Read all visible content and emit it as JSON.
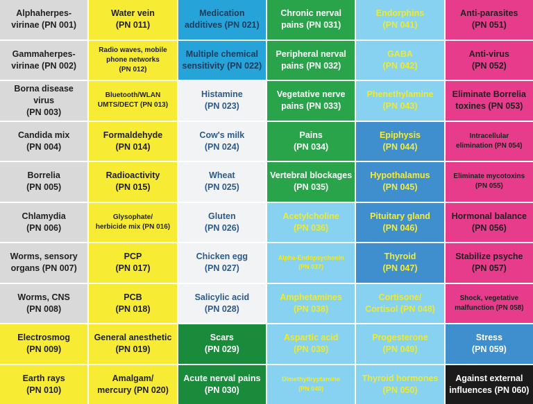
{
  "cells": [
    {
      "l1": "Alphaherpes-",
      "l2": "virinae (PN 001)",
      "theme": "gray",
      "size": ""
    },
    {
      "l1": "Water vein",
      "l2": "(PN 011)",
      "theme": "yellow",
      "size": ""
    },
    {
      "l1": "Medication",
      "l2": "additives (PN 021)",
      "theme": "blue",
      "size": ""
    },
    {
      "l1": "Chronic nerval",
      "l2": "pains (PN 031)",
      "theme": "green",
      "size": ""
    },
    {
      "l1": "Endorphins",
      "l2": "(PN 041)",
      "theme": "lblue",
      "size": ""
    },
    {
      "l1": "Anti-parasites",
      "l2": "(PN 051)",
      "theme": "pink",
      "size": ""
    },
    {
      "l1": "Gammaherpes-",
      "l2": "virinae (PN 002)",
      "theme": "gray",
      "size": ""
    },
    {
      "l1": "Radio waves, mobile\nphone networks",
      "l2": "(PN 012)",
      "theme": "yellow",
      "size": "sm"
    },
    {
      "l1": "Multiple chemical",
      "l2": "sensitivity (PN 022)",
      "theme": "blue",
      "size": ""
    },
    {
      "l1": "Peripheral nerval",
      "l2": "pains (PN 032)",
      "theme": "green",
      "size": ""
    },
    {
      "l1": "GABA",
      "l2": "(PN 042)",
      "theme": "lblue",
      "size": ""
    },
    {
      "l1": "Anti-virus",
      "l2": "(PN 052)",
      "theme": "pink",
      "size": ""
    },
    {
      "l1": "Borna disease virus",
      "l2": "(PN 003)",
      "theme": "gray",
      "size": ""
    },
    {
      "l1": "Bluetooth/WLAN",
      "l2": "UMTS/DECT (PN 013)",
      "theme": "yellow",
      "size": "sm"
    },
    {
      "l1": "Histamine",
      "l2": "(PN 023)",
      "theme": "white",
      "size": ""
    },
    {
      "l1": "Vegetative nerve",
      "l2": "pains (PN 033)",
      "theme": "green",
      "size": ""
    },
    {
      "l1": "Phenethylamine",
      "l2": "(PN 043)",
      "theme": "lblue",
      "size": ""
    },
    {
      "l1": "Eliminate Borrelia",
      "l2": "toxines (PN 053)",
      "theme": "pink",
      "size": ""
    },
    {
      "l1": "Candida mix",
      "l2": "(PN 004)",
      "theme": "gray",
      "size": ""
    },
    {
      "l1": "Formaldehyde",
      "l2": "(PN 014)",
      "theme": "yellow",
      "size": ""
    },
    {
      "l1": "Cow's milk",
      "l2": "(PN 024)",
      "theme": "white",
      "size": ""
    },
    {
      "l1": "Pains",
      "l2": "(PN 034)",
      "theme": "green",
      "size": ""
    },
    {
      "l1": "Epiphysis",
      "l2": "(PN 044)",
      "theme": "mblue",
      "size": ""
    },
    {
      "l1": "Intracellular",
      "l2": "elimination (PN 054)",
      "theme": "pink",
      "size": "sm"
    },
    {
      "l1": "Borrelia",
      "l2": "(PN 005)",
      "theme": "gray",
      "size": ""
    },
    {
      "l1": "Radioactivity",
      "l2": "(PN 015)",
      "theme": "yellow",
      "size": ""
    },
    {
      "l1": "Wheat",
      "l2": "(PN 025)",
      "theme": "white",
      "size": ""
    },
    {
      "l1": "Vertebral blockages",
      "l2": "(PN 035)",
      "theme": "green",
      "size": ""
    },
    {
      "l1": "Hypothalamus",
      "l2": "(PN 045)",
      "theme": "mblue",
      "size": ""
    },
    {
      "l1": "Eliminate mycotoxins",
      "l2": "(PN 055)",
      "theme": "pink",
      "size": "sm"
    },
    {
      "l1": "Chlamydia",
      "l2": "(PN 006)",
      "theme": "gray",
      "size": ""
    },
    {
      "l1": "Glysophate/",
      "l2": "herbicide mix (PN 016)",
      "theme": "yellow",
      "size": "sm"
    },
    {
      "l1": "Gluten",
      "l2": "(PN 026)",
      "theme": "white",
      "size": ""
    },
    {
      "l1": "Acetylcholine",
      "l2": "(PN 036)",
      "theme": "lblue",
      "size": ""
    },
    {
      "l1": "Pituitary gland",
      "l2": "(PN 046)",
      "theme": "mblue",
      "size": ""
    },
    {
      "l1": "Hormonal balance",
      "l2": "(PN 056)",
      "theme": "pink",
      "size": ""
    },
    {
      "l1": "Worms, sensory",
      "l2": "organs (PN 007)",
      "theme": "gray",
      "size": ""
    },
    {
      "l1": "PCP",
      "l2": "(PN 017)",
      "theme": "yellow",
      "size": ""
    },
    {
      "l1": "Chicken egg",
      "l2": "(PN 027)",
      "theme": "white",
      "size": ""
    },
    {
      "l1": "Alpha-Endopsychosin",
      "l2": "(PN 037)",
      "theme": "lblue",
      "size": "xs"
    },
    {
      "l1": "Thyroid",
      "l2": "(PN 047)",
      "theme": "mblue",
      "size": ""
    },
    {
      "l1": "Stabilize psyche",
      "l2": "(PN 057)",
      "theme": "pink",
      "size": ""
    },
    {
      "l1": "Worms, CNS",
      "l2": "(PN 008)",
      "theme": "gray",
      "size": ""
    },
    {
      "l1": "PCB",
      "l2": "(PN 018)",
      "theme": "yellow",
      "size": ""
    },
    {
      "l1": "Salicylic acid",
      "l2": "(PN 028)",
      "theme": "white",
      "size": ""
    },
    {
      "l1": "Amphetamines",
      "l2": "(PN 038)",
      "theme": "lblue",
      "size": ""
    },
    {
      "l1": "Cortisone/",
      "l2": "Cortisol (PN 048)",
      "theme": "lblue",
      "size": ""
    },
    {
      "l1": "Shock, vegetative",
      "l2": "malfunction (PN 058)",
      "theme": "pink",
      "size": "sm"
    },
    {
      "l1": "Electrosmog",
      "l2": "(PN 009)",
      "theme": "yellow",
      "size": ""
    },
    {
      "l1": "General anesthetic",
      "l2": "(PN 019)",
      "theme": "yellow",
      "size": ""
    },
    {
      "l1": "Scars",
      "l2": "(PN 029)",
      "theme": "dgreen",
      "size": ""
    },
    {
      "l1": "Aspartic acid",
      "l2": "(PN 039)",
      "theme": "lblue",
      "size": ""
    },
    {
      "l1": "Progesterone",
      "l2": "(PN 049)",
      "theme": "lblue",
      "size": ""
    },
    {
      "l1": "Stress",
      "l2": "(PN 059)",
      "theme": "mblue-w",
      "size": ""
    },
    {
      "l1": "Earth rays",
      "l2": "(PN 010)",
      "theme": "yellow",
      "size": ""
    },
    {
      "l1": "Amalgam/",
      "l2": "mercury (PN 020)",
      "theme": "yellow",
      "size": ""
    },
    {
      "l1": "Acute nerval pains",
      "l2": "(PN 030)",
      "theme": "dgreen",
      "size": ""
    },
    {
      "l1": "Dimethyltryptamine",
      "l2": "(PN 040)",
      "theme": "lblue",
      "size": "xs"
    },
    {
      "l1": "Thyroid hormones",
      "l2": "(PN 050)",
      "theme": "lblue",
      "size": ""
    },
    {
      "l1": "Against external",
      "l2": "influences (PN 060)",
      "theme": "black",
      "size": ""
    }
  ]
}
